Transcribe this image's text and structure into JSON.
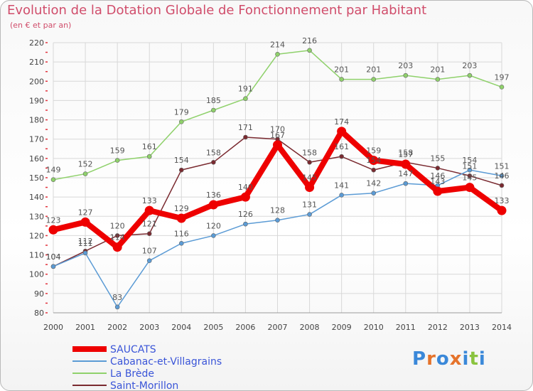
{
  "title": "Evolution de la Dotation Globale de Fonctionnement par Habitant",
  "subtitle": "(en € et par an)",
  "logo": {
    "text": "Proxiti",
    "colors": [
      "#3a88d9",
      "#e5732b",
      "#3a88d9",
      "#e5732b",
      "#3a88d9",
      "#8ac33e",
      "#3a88d9"
    ]
  },
  "chart_data": {
    "type": "line",
    "x": [
      "2000",
      "2001",
      "2002",
      "2003",
      "2004",
      "2005",
      "2006",
      "2007",
      "2008",
      "2009",
      "2010",
      "2011",
      "2012",
      "2013",
      "2014"
    ],
    "ylim": [
      80,
      220
    ],
    "yticks": [
      80,
      90,
      100,
      110,
      120,
      130,
      140,
      150,
      160,
      170,
      180,
      190,
      200,
      210,
      220
    ],
    "grid": true,
    "legend_position": "bottom-left",
    "series": [
      {
        "name": "La Brède",
        "color": "#8fd16b",
        "values": [
          149,
          152,
          159,
          161,
          179,
          185,
          191,
          214,
          216,
          201,
          201,
          203,
          201,
          203,
          197
        ]
      },
      {
        "name": "Saint-Morillon",
        "color": "#7a2a30",
        "values": [
          104,
          112,
          120,
          121,
          154,
          158,
          171,
          170,
          158,
          161,
          154,
          158,
          155,
          151,
          146
        ]
      },
      {
        "name": "Cabanac-et-Villagrains",
        "color": "#5b9bd5",
        "values": [
          104,
          111,
          83,
          107,
          116,
          120,
          126,
          128,
          131,
          141,
          142,
          147,
          146,
          154,
          151
        ]
      },
      {
        "name": "SAUCATS",
        "color": "#ee0000",
        "values": [
          123,
          127,
          114,
          133,
          129,
          136,
          140,
          167,
          145,
          174,
          159,
          157,
          143,
          145,
          133
        ]
      }
    ],
    "legend": [
      "SAUCATS",
      "Cabanac-et-Villagrains",
      "La Brède",
      "Saint-Morillon"
    ]
  }
}
